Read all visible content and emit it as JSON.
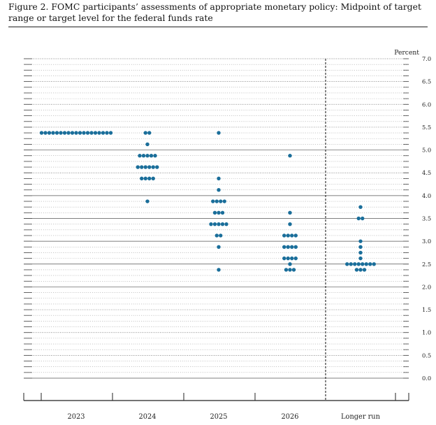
{
  "figure": {
    "title": "Figure 2.  FOMC participants’ assessments of appropriate monetary policy:  Midpoint of target range or target level for the federal funds rate"
  },
  "chart_data": {
    "type": "scatter",
    "style": "dot-plot",
    "ylabel": "Percent",
    "ylim": [
      0.0,
      7.0
    ],
    "y_major_ticks": [
      0.0,
      0.5,
      1.0,
      1.5,
      2.0,
      2.5,
      3.0,
      3.5,
      4.0,
      4.5,
      5.0,
      5.5,
      6.0,
      6.5,
      7.0
    ],
    "y_tick_labels": [
      "0.0",
      "0.5",
      "1.0",
      "1.5",
      "2.0",
      "2.5",
      "3.0",
      "3.5",
      "4.0",
      "4.5",
      "5.0",
      "5.5",
      "6.0",
      "6.5",
      "7.0"
    ],
    "y_minor_step": 0.125,
    "solid_gridlines": [
      2.0,
      2.5,
      3.0,
      3.5,
      4.0,
      5.0
    ],
    "categories": [
      "2023",
      "2024",
      "2025",
      "2026",
      "Longer run"
    ],
    "separator": "dashed vertical line before Longer run",
    "dot_color": "#1a6e9a",
    "series": [
      {
        "category": "2023",
        "dots": [
          {
            "y": 5.375,
            "count": 19
          }
        ]
      },
      {
        "category": "2024",
        "dots": [
          {
            "y": 5.375,
            "count": 2
          },
          {
            "y": 5.125,
            "count": 1
          },
          {
            "y": 4.875,
            "count": 5
          },
          {
            "y": 4.625,
            "count": 6
          },
          {
            "y": 4.375,
            "count": 4
          },
          {
            "y": 3.875,
            "count": 1
          }
        ]
      },
      {
        "category": "2025",
        "dots": [
          {
            "y": 5.375,
            "count": 1
          },
          {
            "y": 4.375,
            "count": 1
          },
          {
            "y": 4.125,
            "count": 1
          },
          {
            "y": 3.875,
            "count": 4
          },
          {
            "y": 3.625,
            "count": 3
          },
          {
            "y": 3.375,
            "count": 5
          },
          {
            "y": 3.125,
            "count": 2
          },
          {
            "y": 2.875,
            "count": 1
          },
          {
            "y": 2.375,
            "count": 1
          }
        ]
      },
      {
        "category": "2026",
        "dots": [
          {
            "y": 4.875,
            "count": 1
          },
          {
            "y": 3.625,
            "count": 1
          },
          {
            "y": 3.375,
            "count": 1
          },
          {
            "y": 3.125,
            "count": 4
          },
          {
            "y": 2.875,
            "count": 4
          },
          {
            "y": 2.625,
            "count": 4
          },
          {
            "y": 2.5,
            "count": 1
          },
          {
            "y": 2.375,
            "count": 3
          }
        ]
      },
      {
        "category": "Longer run",
        "dots": [
          {
            "y": 3.75,
            "count": 1
          },
          {
            "y": 3.5,
            "count": 2
          },
          {
            "y": 3.0,
            "count": 1
          },
          {
            "y": 2.875,
            "count": 1
          },
          {
            "y": 2.75,
            "count": 1
          },
          {
            "y": 2.625,
            "count": 1
          },
          {
            "y": 2.5,
            "count": 8
          },
          {
            "y": 2.375,
            "count": 3
          }
        ]
      }
    ]
  }
}
